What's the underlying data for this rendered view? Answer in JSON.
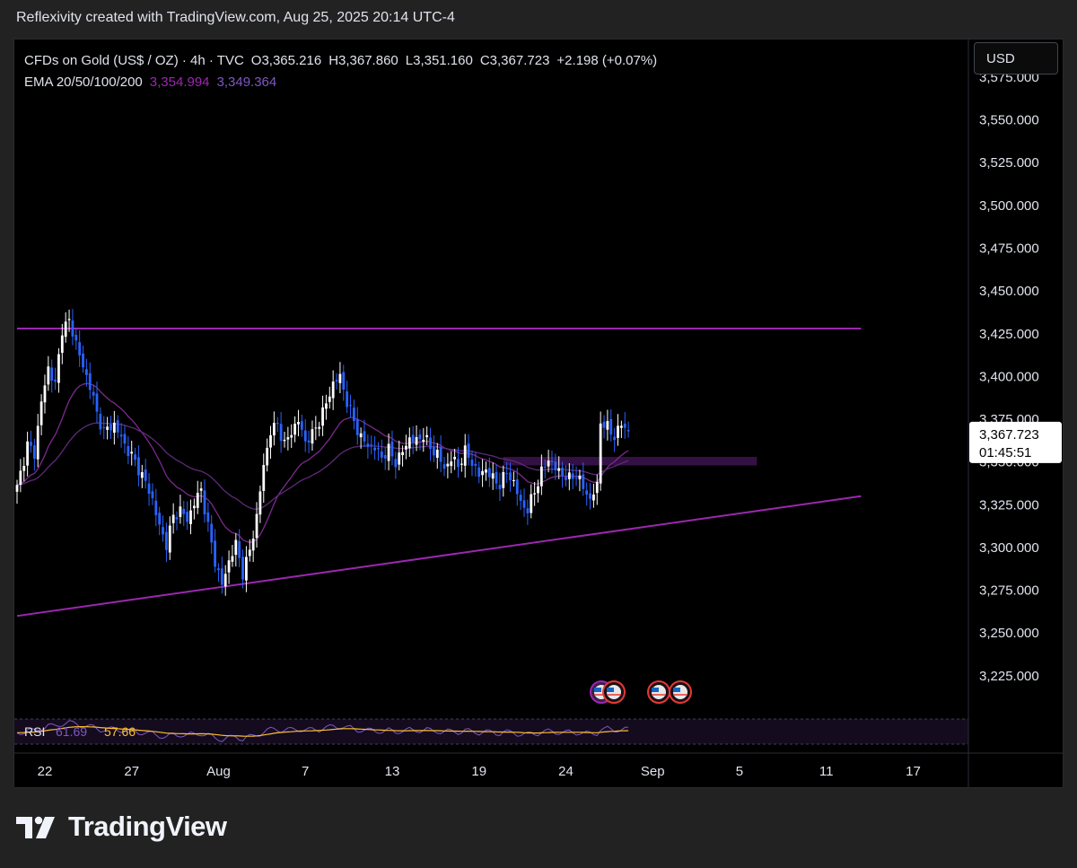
{
  "caption": "Reflexivity created with TradingView.com, Aug 25, 2025 20:14 UTC-4",
  "legend": {
    "symbol": "CFDs on Gold (US$ / OZ) · 4h · TVC",
    "open": "O3,365.216",
    "high": "H3,367.860",
    "low": "L3,351.160",
    "close": "C3,367.723",
    "change": "+2.198 (+0.07%)",
    "ema_label": "EMA 20/50/100/200",
    "ema_value_1": "3,354.994",
    "ema_value_2": "3,349.364"
  },
  "currency_button": "USD",
  "price_tag": {
    "price": "3,367.723",
    "countdown": "01:45:51"
  },
  "rsi": {
    "label": "RSI",
    "value": "61.69",
    "ma_value": "57.66"
  },
  "brand": {
    "name": "TradingView"
  },
  "colors": {
    "up_candle": "#ffffff",
    "down_candle": "#2962ff",
    "trendline": "#9c27b0",
    "ema_fast": "#7b2a8c",
    "ema_slow": "#5e2a7a",
    "rsi_line": "#7e57c2",
    "rsi_ma": "#fbc02d",
    "zone": "#3d1450"
  },
  "chart_data": {
    "type": "candlestick",
    "title": "CFDs on Gold (US$ / OZ) · 4h · TVC",
    "y_axis": {
      "ticks": [
        3225,
        3250,
        3275,
        3300,
        3325,
        3350,
        3375,
        3400,
        3425,
        3450,
        3475,
        3500,
        3525,
        3550,
        3575
      ],
      "tick_labels": [
        "3,225.000",
        "3,250.000",
        "3,275.000",
        "3,300.000",
        "3,325.000",
        "3,350.000",
        "3,375.000",
        "3,400.000",
        "3,425.000",
        "3,450.000",
        "3,475.000",
        "3,500.000",
        "3,525.000",
        "3,550.000",
        "3,575.000"
      ],
      "range": [
        3205,
        3597
      ]
    },
    "x_axis": {
      "tick_labels": [
        "22",
        "27",
        "Aug",
        "7",
        "13",
        "19",
        "24",
        "Sep",
        "5",
        "11",
        "17"
      ],
      "tick_bar_index": [
        8,
        33,
        58,
        83,
        108,
        133,
        158,
        183,
        208,
        233,
        258
      ]
    },
    "close_path": [
      [
        0,
        3335
      ],
      [
        3,
        3360
      ],
      [
        5,
        3355
      ],
      [
        7,
        3385
      ],
      [
        9,
        3405
      ],
      [
        11,
        3395
      ],
      [
        13,
        3428
      ],
      [
        15,
        3432
      ],
      [
        17,
        3420
      ],
      [
        19,
        3405
      ],
      [
        21,
        3395
      ],
      [
        23,
        3378
      ],
      [
        25,
        3368
      ],
      [
        28,
        3372
      ],
      [
        31,
        3360
      ],
      [
        34,
        3350
      ],
      [
        37,
        3338
      ],
      [
        39,
        3328
      ],
      [
        41,
        3312
      ],
      [
        43,
        3302
      ],
      [
        45,
        3318
      ],
      [
        47,
        3322
      ],
      [
        49,
        3316
      ],
      [
        51,
        3326
      ],
      [
        53,
        3334
      ],
      [
        55,
        3312
      ],
      [
        57,
        3292
      ],
      [
        59,
        3278
      ],
      [
        61,
        3292
      ],
      [
        63,
        3302
      ],
      [
        65,
        3285
      ],
      [
        67,
        3298
      ],
      [
        69,
        3318
      ],
      [
        71,
        3348
      ],
      [
        73,
        3368
      ],
      [
        75,
        3372
      ],
      [
        77,
        3360
      ],
      [
        79,
        3368
      ],
      [
        81,
        3374
      ],
      [
        83,
        3362
      ],
      [
        85,
        3366
      ],
      [
        87,
        3374
      ],
      [
        89,
        3384
      ],
      [
        91,
        3396
      ],
      [
        93,
        3400
      ],
      [
        95,
        3385
      ],
      [
        97,
        3374
      ],
      [
        99,
        3364
      ],
      [
        101,
        3360
      ],
      [
        103,
        3358
      ],
      [
        105,
        3353
      ],
      [
        107,
        3357
      ],
      [
        109,
        3350
      ],
      [
        111,
        3356
      ],
      [
        113,
        3364
      ],
      [
        115,
        3362
      ],
      [
        117,
        3366
      ],
      [
        119,
        3358
      ],
      [
        121,
        3355
      ],
      [
        123,
        3346
      ],
      [
        125,
        3352
      ],
      [
        127,
        3348
      ],
      [
        129,
        3356
      ],
      [
        131,
        3350
      ],
      [
        133,
        3342
      ],
      [
        135,
        3346
      ],
      [
        137,
        3340
      ],
      [
        139,
        3337
      ],
      [
        141,
        3344
      ],
      [
        143,
        3338
      ],
      [
        145,
        3326
      ],
      [
        147,
        3322
      ],
      [
        149,
        3333
      ],
      [
        151,
        3344
      ],
      [
        153,
        3352
      ],
      [
        155,
        3346
      ],
      [
        157,
        3343
      ],
      [
        159,
        3340
      ],
      [
        161,
        3343
      ],
      [
        163,
        3335
      ],
      [
        165,
        3328
      ],
      [
        167,
        3336
      ],
      [
        168,
        3374
      ],
      [
        170,
        3370
      ],
      [
        172,
        3365
      ],
      [
        174,
        3372
      ],
      [
        176,
        3368
      ]
    ],
    "lines": [
      {
        "name": "",
        "points": [
          [
            0,
            3428
          ],
          [
            243,
            3428
          ]
        ]
      },
      {
        "name": "",
        "points": [
          [
            0,
            3260
          ],
          [
            243,
            3330
          ]
        ]
      }
    ],
    "zone": {
      "x_range": [
        140,
        213
      ],
      "y_range": [
        3348,
        3353
      ]
    },
    "ema": [
      {
        "name": "EMA 20",
        "value": 3354.994
      },
      {
        "name": "EMA 50",
        "value": 3349.364
      }
    ],
    "rsi": {
      "value": 61.69,
      "ma": 57.66
    }
  }
}
